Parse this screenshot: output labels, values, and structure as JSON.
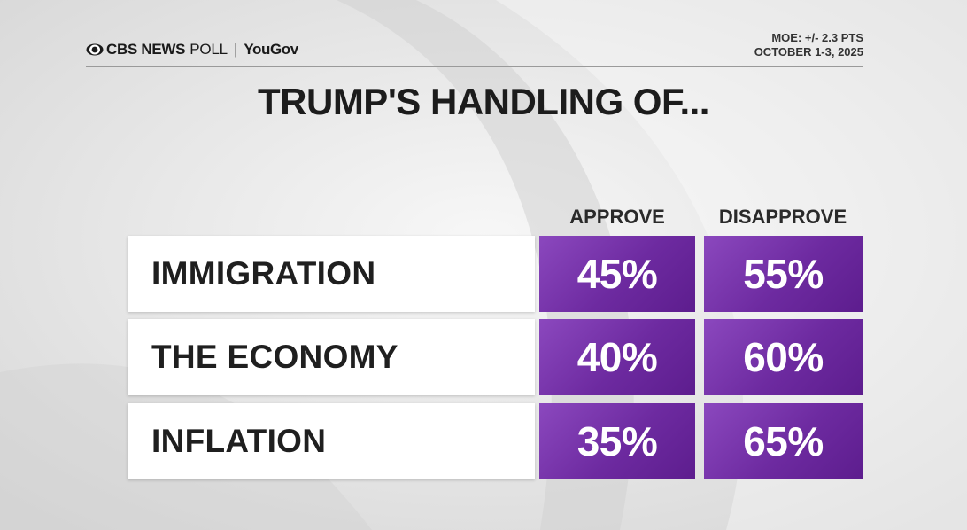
{
  "header": {
    "brand_network": "CBS NEWS",
    "brand_poll": "POLL",
    "brand_separator": "|",
    "brand_partner": "YouGov",
    "moe": "MOE: +/- 2.3 PTS",
    "dates": "OCTOBER 1-3, 2025"
  },
  "colors": {
    "purple": "#6d2aa0",
    "purple_light": "#8b48be",
    "text_dark": "#1c1c1c",
    "background": "#e4e4e4"
  },
  "chart_data": {
    "type": "table",
    "title": "TRUMP'S HANDLING OF...",
    "columns": [
      "APPROVE",
      "DISAPPROVE"
    ],
    "categories": [
      "IMMIGRATION",
      "THE ECONOMY",
      "INFLATION"
    ],
    "series": [
      {
        "name": "APPROVE",
        "values": [
          45,
          40,
          35
        ]
      },
      {
        "name": "DISAPPROVE",
        "values": [
          55,
          60,
          65
        ]
      }
    ],
    "value_labels": {
      "APPROVE": [
        "45%",
        "40%",
        "35%"
      ],
      "DISAPPROVE": [
        "55%",
        "60%",
        "65%"
      ]
    },
    "unit": "%"
  }
}
